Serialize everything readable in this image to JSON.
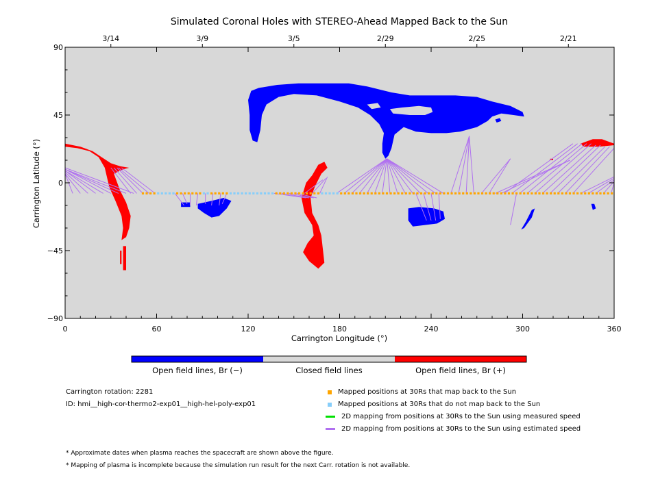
{
  "chart_data": {
    "type": "map",
    "title": "Simulated Coronal Holes with STEREO-Ahead Mapped Back to the Sun",
    "xlabel": "Carrington Longitude (°)",
    "ylabel": "Carrington Latitude (°)",
    "xlim": [
      0,
      360
    ],
    "ylim": [
      -90,
      90
    ],
    "x_ticks": [
      "0",
      "60",
      "120",
      "180",
      "240",
      "300",
      "360"
    ],
    "y_ticks": [
      "90",
      "45",
      "0",
      "−45",
      "−90"
    ],
    "top_date_ticks": [
      {
        "lon": 30,
        "label": "3/14"
      },
      {
        "lon": 90,
        "label": "3/9"
      },
      {
        "lon": 150,
        "label": "3/5"
      },
      {
        "lon": 210,
        "label": "2/29"
      },
      {
        "lon": 270,
        "label": "2/25"
      },
      {
        "lon": 330,
        "label": "2/21"
      }
    ],
    "background_color": "#d8d8d8",
    "negative_color": "#0000ff",
    "positive_color": "#ff0000",
    "orange_color": "#ffa500",
    "lightblue_color": "#87cefa",
    "purple_color": "#b070f0",
    "mapped_latitude": -7,
    "blue_lon_ranges": [
      [
        61,
        72
      ],
      [
        89,
        94
      ],
      [
        108,
        136
      ],
      [
        168,
        179
      ]
    ],
    "mapped_lon_range": [
      51,
      360
    ],
    "mapped_step": 2.5,
    "mappings": [
      {
        "lon": 0,
        "target": [
          0,
          5
        ]
      },
      {
        "lon": 5,
        "target": [
          0,
          6
        ]
      },
      {
        "lon": 10,
        "target": [
          0,
          6
        ]
      },
      {
        "lon": 15,
        "target": [
          0,
          7
        ]
      },
      {
        "lon": 20,
        "target": [
          0,
          8
        ]
      },
      {
        "lon": 25,
        "target": [
          0,
          8
        ]
      },
      {
        "lon": 30,
        "target": [
          0,
          9
        ]
      },
      {
        "lon": 35,
        "target": [
          0,
          9
        ]
      },
      {
        "lon": 40,
        "target": [
          0,
          9
        ]
      },
      {
        "lon": 45,
        "target": [
          0,
          10
        ]
      },
      {
        "lon": 43,
        "target": [
          30,
          10
        ]
      },
      {
        "lon": 47,
        "target": [
          32,
          10
        ]
      },
      {
        "lon": 51,
        "target": [
          34,
          10
        ]
      },
      {
        "lon": 55,
        "target": [
          35,
          10
        ]
      },
      {
        "lon": 59,
        "target": [
          37,
          10
        ]
      },
      {
        "lon": 72,
        "target": [
          78,
          -15
        ]
      },
      {
        "lon": 77,
        "target": [
          80,
          -14
        ]
      },
      {
        "lon": 82,
        "target": [
          82,
          -15
        ]
      },
      {
        "lon": 87,
        "target": [
          86,
          -15
        ]
      },
      {
        "lon": 92,
        "target": [
          92,
          -14
        ]
      },
      {
        "lon": 97,
        "target": [
          96,
          -15
        ]
      },
      {
        "lon": 102,
        "target": [
          101,
          -15
        ]
      },
      {
        "lon": 106,
        "target": [
          103,
          -14
        ]
      },
      {
        "lon": 137,
        "target": [
          158,
          -10
        ]
      },
      {
        "lon": 142,
        "target": [
          160,
          -10
        ]
      },
      {
        "lon": 147,
        "target": [
          163,
          -10
        ]
      },
      {
        "lon": 152,
        "target": [
          165,
          -10
        ]
      },
      {
        "lon": 157,
        "target": [
          169,
          2
        ]
      },
      {
        "lon": 162,
        "target": [
          171,
          3
        ]
      },
      {
        "lon": 167,
        "target": [
          172,
          4
        ]
      },
      {
        "lon": 178,
        "target": [
          211,
          16
        ]
      },
      {
        "lon": 183,
        "target": [
          211,
          16
        ]
      },
      {
        "lon": 188,
        "target": [
          211,
          16
        ]
      },
      {
        "lon": 193,
        "target": [
          211,
          16
        ]
      },
      {
        "lon": 198,
        "target": [
          211,
          16
        ]
      },
      {
        "lon": 203,
        "target": [
          211,
          16
        ]
      },
      {
        "lon": 208,
        "target": [
          211,
          16
        ]
      },
      {
        "lon": 213,
        "target": [
          211,
          16
        ]
      },
      {
        "lon": 218,
        "target": [
          211,
          16
        ]
      },
      {
        "lon": 223,
        "target": [
          211,
          16
        ]
      },
      {
        "lon": 228,
        "target": [
          211,
          16
        ]
      },
      {
        "lon": 233,
        "target": [
          211,
          16
        ]
      },
      {
        "lon": 238,
        "target": [
          211,
          16
        ]
      },
      {
        "lon": 243,
        "target": [
          211,
          16
        ]
      },
      {
        "lon": 248,
        "target": [
          211,
          16
        ]
      },
      {
        "lon": 230,
        "target": [
          237,
          -25
        ]
      },
      {
        "lon": 235,
        "target": [
          240,
          -25
        ]
      },
      {
        "lon": 240,
        "target": [
          243,
          -25
        ]
      },
      {
        "lon": 245,
        "target": [
          246,
          -24
        ]
      },
      {
        "lon": 253,
        "target": [
          265,
          31
        ]
      },
      {
        "lon": 258,
        "target": [
          265,
          31
        ]
      },
      {
        "lon": 263,
        "target": [
          265,
          31
        ]
      },
      {
        "lon": 268,
        "target": [
          265,
          31
        ]
      },
      {
        "lon": 273,
        "target": [
          292,
          16
        ]
      },
      {
        "lon": 278,
        "target": [
          292,
          16
        ]
      },
      {
        "lon": 282,
        "target": [
          331,
          15
        ]
      },
      {
        "lon": 286,
        "target": [
          331,
          15
        ]
      },
      {
        "lon": 288,
        "target": [
          333,
          26
        ]
      },
      {
        "lon": 293,
        "target": [
          336,
          26
        ]
      },
      {
        "lon": 298,
        "target": [
          339,
          26
        ]
      },
      {
        "lon": 303,
        "target": [
          342,
          26
        ]
      },
      {
        "lon": 308,
        "target": [
          345,
          26
        ]
      },
      {
        "lon": 313,
        "target": [
          348,
          25
        ]
      },
      {
        "lon": 318,
        "target": [
          351,
          25
        ]
      },
      {
        "lon": 323,
        "target": [
          354,
          24
        ]
      },
      {
        "lon": 328,
        "target": [
          357,
          24
        ]
      },
      {
        "lon": 333,
        "target": [
          360,
          23
        ]
      },
      {
        "lon": 338,
        "target": [
          360,
          4
        ]
      },
      {
        "lon": 343,
        "target": [
          360,
          3
        ]
      },
      {
        "lon": 348,
        "target": [
          360,
          2
        ]
      },
      {
        "lon": 353,
        "target": [
          360,
          1
        ]
      },
      {
        "lon": 358,
        "target": [
          360,
          0
        ]
      },
      {
        "lon": 296,
        "target": [
          292,
          -28
        ]
      }
    ]
  },
  "colorbar": {
    "labels": [
      "Open field lines, Br (−)",
      "Closed field lines",
      "Open field lines, Br (+)"
    ]
  },
  "info": {
    "rotation": "Carrington rotation: 2281",
    "id": "ID: hmi__high-cor-thermo2-exp01__high-hel-poly-exp01"
  },
  "legend": [
    {
      "label": "Mapped positions at 30Rs that map back to the Sun",
      "color": "#ffa500",
      "kind": "square"
    },
    {
      "label": "Mapped positions at 30Rs that do not map back to the Sun",
      "color": "#87cefa",
      "kind": "square"
    },
    {
      "label": "2D mapping from positions at 30Rs to the Sun using measured speed",
      "color": "#00e000",
      "kind": "line"
    },
    {
      "label": "2D mapping from positions at 30Rs to the Sun using estimated speed",
      "color": "#b070f0",
      "kind": "line"
    }
  ],
  "footnotes": [
    "* Approximate dates when plasma reaches the spacecraft are shown above the figure.",
    "* Mapping of plasma is incomplete because the simulation run result for the next Carr. rotation is not available."
  ]
}
